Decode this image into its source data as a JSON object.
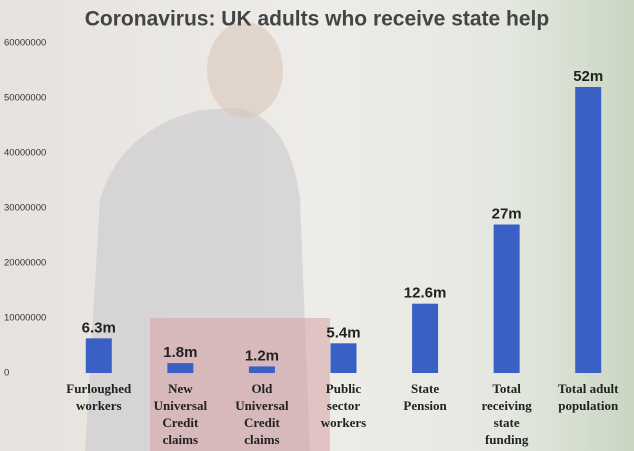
{
  "chart_data": {
    "type": "bar",
    "title": "Coronavirus: UK adults who receive state help",
    "categories": [
      "Furloughed workers",
      "New Universal Credit claims",
      "Old Universal Credit claims",
      "Public sector workers",
      "State Pension",
      "Total receiving state funding",
      "Total adult population"
    ],
    "values": [
      6300000,
      1800000,
      1200000,
      5400000,
      12600000,
      27000000,
      52000000
    ],
    "value_labels": [
      "6.3m",
      "1.8m",
      "1.2m",
      "5.4m",
      "12.6m",
      "27m",
      "52m"
    ],
    "color": "#3a60c6",
    "ylim": [
      0,
      60000000
    ],
    "yticks": [
      0,
      10000000,
      20000000,
      30000000,
      40000000,
      50000000,
      60000000
    ]
  }
}
